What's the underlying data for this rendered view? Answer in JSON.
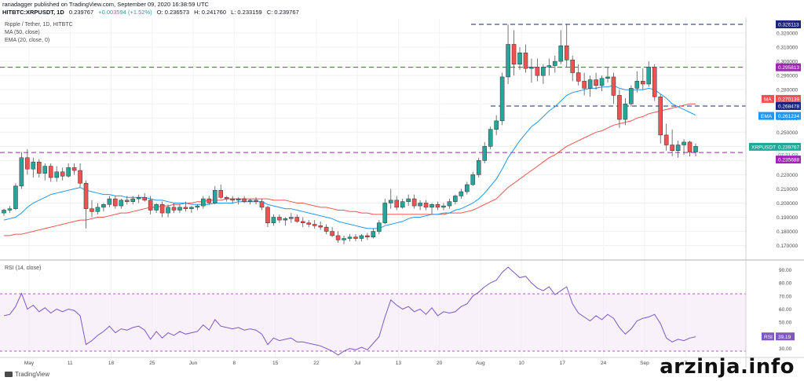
{
  "header": {
    "publisher": "ranadagger published on TradingView.com, September 09, 2020 16:38:59 UTC",
    "symbol": "HITBTC:XRPUSDT, 1D",
    "last": "0.239767",
    "change": "+0.003594 (+1.52%)",
    "open": "O: 0.236573",
    "high": "H: 0.241760",
    "low": "L: 0.233159",
    "close": "C: 0.239767"
  },
  "legend": {
    "title": "Ripple / Tether, 1D, HITBTC",
    "ma": "MA (50, close)",
    "ema": "EMA (20, close, 0)",
    "rsi": "RSI (14, close)"
  },
  "axis": {
    "currency": "USDT",
    "rsi_ticks": [
      "90.00",
      "80.00",
      "70.00",
      "60.00",
      "50.00",
      "40.00",
      "30.00"
    ]
  },
  "tags": {
    "top_line": "0.326113",
    "mid_line": "0.295813",
    "ma_label": "MA",
    "ma_value": "0.270139",
    "res_line": "0.268478",
    "ema_label": "EMA",
    "ema_value": "0.261234",
    "price_label": "XRPUSDT",
    "price_value": "0.239767",
    "countdown": "07:21:03",
    "support_line": "0.235688",
    "rsi_label": "RSI",
    "rsi_value": "39.19"
  },
  "footer": {
    "brand": "TradingView",
    "watermark": "arzinja.info"
  },
  "colors": {
    "up": "#26a69a",
    "down": "#ef5350",
    "ema": "#2196f3",
    "ma": "#ef5350",
    "dashed": "#1a237e",
    "purple_dash": "#9c27b0",
    "rsi": "#7e57c2",
    "rsi_band": "#f3e5f5"
  },
  "chart_data": {
    "type": "candlestick",
    "title": "Ripple / Tether, 1D, HITBTC",
    "y_ticks": [
      0.32,
      0.31,
      0.3,
      0.29,
      0.28,
      0.27,
      0.26,
      0.25,
      0.24,
      0.23,
      0.22,
      0.21,
      0.2,
      0.19,
      0.18,
      0.17
    ],
    "ylim": [
      0.162,
      0.33
    ],
    "x_ticks": [
      "May",
      "11",
      "18",
      "25",
      "Jun",
      "8",
      "15",
      "22",
      "Jul",
      "13",
      "20",
      "Aug",
      "10",
      "17",
      "24",
      "Sep",
      "7"
    ],
    "horizontal_lines": [
      0.326113,
      0.295813,
      0.268478,
      0.235688
    ],
    "candles": [
      [
        0.193,
        0.196,
        0.191,
        0.195
      ],
      [
        0.195,
        0.198,
        0.193,
        0.196
      ],
      [
        0.196,
        0.214,
        0.195,
        0.212
      ],
      [
        0.212,
        0.236,
        0.21,
        0.232
      ],
      [
        0.232,
        0.238,
        0.22,
        0.224
      ],
      [
        0.224,
        0.232,
        0.218,
        0.229
      ],
      [
        0.229,
        0.231,
        0.218,
        0.221
      ],
      [
        0.221,
        0.228,
        0.216,
        0.226
      ],
      [
        0.226,
        0.228,
        0.215,
        0.218
      ],
      [
        0.218,
        0.226,
        0.215,
        0.222
      ],
      [
        0.222,
        0.225,
        0.216,
        0.219
      ],
      [
        0.219,
        0.228,
        0.218,
        0.225
      ],
      [
        0.225,
        0.228,
        0.22,
        0.223
      ],
      [
        0.223,
        0.228,
        0.211,
        0.214
      ],
      [
        0.214,
        0.216,
        0.182,
        0.196
      ],
      [
        0.196,
        0.202,
        0.19,
        0.194
      ],
      [
        0.194,
        0.2,
        0.192,
        0.197
      ],
      [
        0.197,
        0.2,
        0.194,
        0.199
      ],
      [
        0.199,
        0.205,
        0.197,
        0.203
      ],
      [
        0.203,
        0.205,
        0.196,
        0.198
      ],
      [
        0.198,
        0.203,
        0.196,
        0.202
      ],
      [
        0.202,
        0.205,
        0.199,
        0.201
      ],
      [
        0.201,
        0.205,
        0.199,
        0.203
      ],
      [
        0.203,
        0.206,
        0.2,
        0.204
      ],
      [
        0.204,
        0.207,
        0.201,
        0.202
      ],
      [
        0.202,
        0.205,
        0.192,
        0.195
      ],
      [
        0.195,
        0.2,
        0.193,
        0.199
      ],
      [
        0.199,
        0.201,
        0.19,
        0.193
      ],
      [
        0.193,
        0.199,
        0.19,
        0.197
      ],
      [
        0.197,
        0.2,
        0.193,
        0.195
      ],
      [
        0.195,
        0.199,
        0.193,
        0.197
      ],
      [
        0.197,
        0.201,
        0.194,
        0.196
      ],
      [
        0.196,
        0.198,
        0.193,
        0.197
      ],
      [
        0.197,
        0.199,
        0.195,
        0.198
      ],
      [
        0.198,
        0.205,
        0.196,
        0.203
      ],
      [
        0.203,
        0.205,
        0.199,
        0.2
      ],
      [
        0.2,
        0.212,
        0.199,
        0.209
      ],
      [
        0.209,
        0.213,
        0.203,
        0.204
      ],
      [
        0.204,
        0.205,
        0.201,
        0.203
      ],
      [
        0.203,
        0.205,
        0.2,
        0.202
      ],
      [
        0.202,
        0.204,
        0.199,
        0.203
      ],
      [
        0.203,
        0.205,
        0.2,
        0.201
      ],
      [
        0.201,
        0.203,
        0.199,
        0.202
      ],
      [
        0.202,
        0.204,
        0.199,
        0.201
      ],
      [
        0.201,
        0.203,
        0.195,
        0.197
      ],
      [
        0.197,
        0.198,
        0.183,
        0.186
      ],
      [
        0.186,
        0.192,
        0.184,
        0.19
      ],
      [
        0.19,
        0.192,
        0.186,
        0.188
      ],
      [
        0.188,
        0.19,
        0.184,
        0.189
      ],
      [
        0.189,
        0.193,
        0.186,
        0.19
      ],
      [
        0.19,
        0.192,
        0.186,
        0.187
      ],
      [
        0.187,
        0.19,
        0.183,
        0.186
      ],
      [
        0.186,
        0.188,
        0.183,
        0.185
      ],
      [
        0.185,
        0.188,
        0.182,
        0.184
      ],
      [
        0.184,
        0.187,
        0.181,
        0.183
      ],
      [
        0.183,
        0.185,
        0.178,
        0.18
      ],
      [
        0.18,
        0.183,
        0.176,
        0.177
      ],
      [
        0.177,
        0.18,
        0.172,
        0.174
      ],
      [
        0.174,
        0.177,
        0.171,
        0.175
      ],
      [
        0.175,
        0.178,
        0.173,
        0.176
      ],
      [
        0.176,
        0.178,
        0.173,
        0.175
      ],
      [
        0.175,
        0.178,
        0.173,
        0.177
      ],
      [
        0.177,
        0.179,
        0.174,
        0.176
      ],
      [
        0.176,
        0.182,
        0.175,
        0.18
      ],
      [
        0.18,
        0.188,
        0.178,
        0.186
      ],
      [
        0.186,
        0.203,
        0.185,
        0.2
      ],
      [
        0.2,
        0.21,
        0.196,
        0.202
      ],
      [
        0.202,
        0.205,
        0.195,
        0.197
      ],
      [
        0.197,
        0.203,
        0.196,
        0.201
      ],
      [
        0.201,
        0.206,
        0.198,
        0.203
      ],
      [
        0.203,
        0.206,
        0.196,
        0.198
      ],
      [
        0.198,
        0.202,
        0.195,
        0.2
      ],
      [
        0.2,
        0.202,
        0.195,
        0.197
      ],
      [
        0.197,
        0.2,
        0.192,
        0.199
      ],
      [
        0.199,
        0.201,
        0.195,
        0.197
      ],
      [
        0.197,
        0.2,
        0.195,
        0.198
      ],
      [
        0.198,
        0.203,
        0.196,
        0.201
      ],
      [
        0.201,
        0.206,
        0.199,
        0.205
      ],
      [
        0.205,
        0.21,
        0.203,
        0.208
      ],
      [
        0.208,
        0.215,
        0.206,
        0.213
      ],
      [
        0.213,
        0.222,
        0.212,
        0.22
      ],
      [
        0.22,
        0.232,
        0.218,
        0.23
      ],
      [
        0.23,
        0.243,
        0.228,
        0.24
      ],
      [
        0.24,
        0.254,
        0.238,
        0.252
      ],
      [
        0.252,
        0.262,
        0.248,
        0.258
      ],
      [
        0.258,
        0.292,
        0.255,
        0.289
      ],
      [
        0.289,
        0.326,
        0.284,
        0.312
      ],
      [
        0.312,
        0.322,
        0.29,
        0.298
      ],
      [
        0.298,
        0.31,
        0.294,
        0.306
      ],
      [
        0.306,
        0.312,
        0.292,
        0.295
      ],
      [
        0.295,
        0.302,
        0.285,
        0.296
      ],
      [
        0.296,
        0.302,
        0.286,
        0.29
      ],
      [
        0.29,
        0.298,
        0.284,
        0.296
      ],
      [
        0.296,
        0.302,
        0.29,
        0.297
      ],
      [
        0.297,
        0.304,
        0.292,
        0.3
      ],
      [
        0.3,
        0.322,
        0.298,
        0.311
      ],
      [
        0.311,
        0.326,
        0.296,
        0.301
      ],
      [
        0.301,
        0.304,
        0.286,
        0.292
      ],
      [
        0.292,
        0.298,
        0.283,
        0.286
      ],
      [
        0.286,
        0.292,
        0.276,
        0.281
      ],
      [
        0.281,
        0.29,
        0.275,
        0.287
      ],
      [
        0.287,
        0.292,
        0.28,
        0.283
      ],
      [
        0.283,
        0.29,
        0.279,
        0.288
      ],
      [
        0.288,
        0.296,
        0.285,
        0.289
      ],
      [
        0.289,
        0.292,
        0.27,
        0.276
      ],
      [
        0.276,
        0.28,
        0.253,
        0.259
      ],
      [
        0.259,
        0.274,
        0.255,
        0.27
      ],
      [
        0.27,
        0.283,
        0.268,
        0.281
      ],
      [
        0.281,
        0.293,
        0.278,
        0.286
      ],
      [
        0.286,
        0.295,
        0.28,
        0.284
      ],
      [
        0.284,
        0.3,
        0.282,
        0.296
      ],
      [
        0.296,
        0.298,
        0.272,
        0.275
      ],
      [
        0.275,
        0.277,
        0.242,
        0.248
      ],
      [
        0.248,
        0.256,
        0.237,
        0.241
      ],
      [
        0.241,
        0.252,
        0.233,
        0.237
      ],
      [
        0.237,
        0.244,
        0.232,
        0.241
      ],
      [
        0.241,
        0.245,
        0.234,
        0.243
      ],
      [
        0.243,
        0.244,
        0.233,
        0.236
      ],
      [
        0.236,
        0.242,
        0.233,
        0.24
      ]
    ],
    "ema20": [
      0.188,
      0.189,
      0.19,
      0.193,
      0.197,
      0.2,
      0.202,
      0.204,
      0.206,
      0.207,
      0.208,
      0.209,
      0.21,
      0.211,
      0.209,
      0.208,
      0.207,
      0.206,
      0.206,
      0.205,
      0.205,
      0.204,
      0.204,
      0.204,
      0.204,
      0.203,
      0.202,
      0.202,
      0.201,
      0.2,
      0.2,
      0.2,
      0.199,
      0.199,
      0.199,
      0.199,
      0.2,
      0.2,
      0.2,
      0.2,
      0.201,
      0.201,
      0.201,
      0.201,
      0.201,
      0.199,
      0.198,
      0.197,
      0.196,
      0.196,
      0.195,
      0.194,
      0.193,
      0.192,
      0.191,
      0.19,
      0.189,
      0.187,
      0.186,
      0.185,
      0.184,
      0.183,
      0.182,
      0.182,
      0.182,
      0.184,
      0.185,
      0.186,
      0.187,
      0.189,
      0.19,
      0.19,
      0.191,
      0.192,
      0.192,
      0.193,
      0.193,
      0.195,
      0.196,
      0.198,
      0.2,
      0.203,
      0.207,
      0.212,
      0.217,
      0.224,
      0.232,
      0.238,
      0.244,
      0.249,
      0.254,
      0.257,
      0.261,
      0.265,
      0.268,
      0.272,
      0.276,
      0.278,
      0.279,
      0.28,
      0.281,
      0.281,
      0.282,
      0.282,
      0.283,
      0.281,
      0.28,
      0.28,
      0.28,
      0.28,
      0.281,
      0.28,
      0.277,
      0.274,
      0.27,
      0.268,
      0.266,
      0.264,
      0.262
    ],
    "ma50": [
      0.177,
      0.177,
      0.178,
      0.178,
      0.179,
      0.18,
      0.181,
      0.182,
      0.183,
      0.184,
      0.185,
      0.186,
      0.187,
      0.188,
      0.188,
      0.189,
      0.19,
      0.19,
      0.191,
      0.192,
      0.193,
      0.193,
      0.194,
      0.195,
      0.196,
      0.197,
      0.197,
      0.198,
      0.198,
      0.199,
      0.199,
      0.2,
      0.2,
      0.201,
      0.201,
      0.202,
      0.202,
      0.202,
      0.203,
      0.203,
      0.203,
      0.203,
      0.203,
      0.203,
      0.203,
      0.203,
      0.202,
      0.202,
      0.202,
      0.201,
      0.2,
      0.2,
      0.199,
      0.198,
      0.197,
      0.197,
      0.196,
      0.195,
      0.195,
      0.194,
      0.194,
      0.193,
      0.193,
      0.192,
      0.192,
      0.192,
      0.192,
      0.192,
      0.192,
      0.192,
      0.192,
      0.192,
      0.192,
      0.192,
      0.192,
      0.192,
      0.193,
      0.193,
      0.193,
      0.194,
      0.195,
      0.197,
      0.199,
      0.201,
      0.203,
      0.207,
      0.211,
      0.214,
      0.217,
      0.22,
      0.223,
      0.226,
      0.229,
      0.232,
      0.234,
      0.237,
      0.24,
      0.242,
      0.244,
      0.246,
      0.248,
      0.25,
      0.251,
      0.253,
      0.255,
      0.256,
      0.257,
      0.258,
      0.26,
      0.261,
      0.263,
      0.264,
      0.265,
      0.266,
      0.267,
      0.268,
      0.269,
      0.27,
      0.27
    ],
    "rsi": [
      55,
      56,
      62,
      72,
      60,
      63,
      58,
      61,
      57,
      60,
      58,
      60,
      59,
      55,
      33,
      36,
      40,
      43,
      47,
      42,
      45,
      44,
      46,
      47,
      44,
      37,
      43,
      38,
      42,
      40,
      43,
      41,
      42,
      43,
      48,
      44,
      52,
      47,
      46,
      45,
      46,
      44,
      45,
      44,
      41,
      33,
      38,
      36,
      37,
      38,
      35,
      35,
      34,
      33,
      32,
      30,
      28,
      25,
      28,
      30,
      29,
      31,
      29,
      34,
      39,
      54,
      67,
      63,
      60,
      62,
      58,
      60,
      56,
      61,
      55,
      58,
      57,
      58,
      62,
      64,
      70,
      73,
      77,
      80,
      82,
      88,
      92,
      88,
      84,
      85,
      80,
      76,
      74,
      77,
      71,
      74,
      77,
      64,
      57,
      54,
      51,
      55,
      52,
      56,
      53,
      46,
      41,
      45,
      51,
      53,
      54,
      56,
      49,
      38,
      35,
      37,
      36,
      38,
      39
    ]
  }
}
